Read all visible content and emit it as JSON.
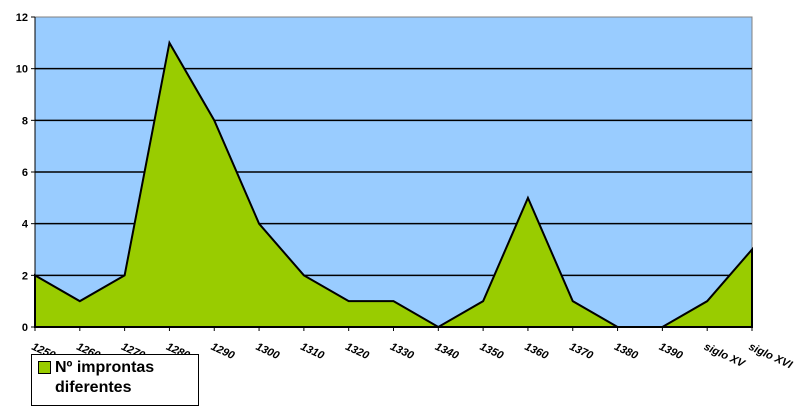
{
  "chart_data": {
    "type": "area",
    "categories": [
      "1250",
      "1260",
      "1270",
      "1280",
      "1290",
      "1300",
      "1310",
      "1320",
      "1330",
      "1340",
      "1350",
      "1360",
      "1370",
      "1380",
      "1390",
      "siglo XV",
      "siglo XVI"
    ],
    "series": [
      {
        "name": "Nº improntas diferentes",
        "values": [
          2,
          1,
          2,
          11,
          8,
          4,
          2,
          1,
          1,
          0,
          1,
          5,
          1,
          0,
          0,
          1,
          3
        ]
      }
    ],
    "ylim": [
      0,
      12
    ],
    "yticks": [
      0,
      2,
      4,
      6,
      8,
      10,
      12
    ],
    "grid": true,
    "legend_position": "bottom-left",
    "colors": {
      "plot_bg": "#99ccff",
      "area_fill": "#99cc00",
      "outline": "#000000"
    }
  }
}
